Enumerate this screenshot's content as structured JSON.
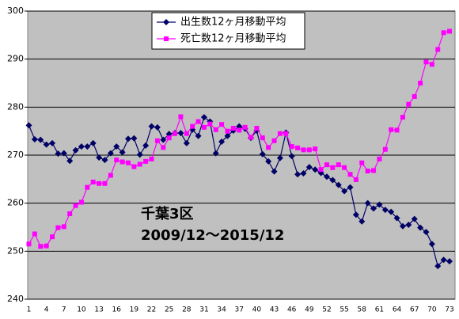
{
  "chart_data": {
    "type": "line",
    "annotations": [
      "千葉3区",
      "2009/12～2015/12"
    ],
    "categories": [
      1,
      null,
      null,
      4,
      null,
      null,
      7,
      null,
      null,
      10,
      null,
      null,
      13,
      null,
      null,
      16,
      null,
      null,
      19,
      null,
      null,
      22,
      null,
      null,
      25,
      null,
      null,
      28,
      null,
      null,
      31,
      null,
      null,
      34,
      null,
      null,
      37,
      null,
      null,
      40,
      null,
      null,
      43,
      null,
      null,
      46,
      null,
      null,
      49,
      null,
      null,
      52,
      null,
      null,
      55,
      null,
      null,
      58,
      null,
      null,
      61,
      null,
      null,
      64,
      null,
      null,
      67,
      null,
      null,
      70,
      null,
      null,
      73
    ],
    "series": [
      {
        "name": "出生数12ヶ月移動平均",
        "color": "#000066",
        "marker": "diamond",
        "values": [
          276.2,
          273.3,
          273.2,
          272.2,
          272.5,
          270.3,
          270.4,
          268.8,
          271.0,
          271.8,
          271.8,
          272.5,
          269.5,
          269.0,
          270.4,
          271.8,
          270.6,
          273.4,
          273.5,
          270.1,
          272.0,
          276.0,
          275.8,
          273.2,
          274.4,
          274.6,
          274.6,
          272.5,
          275.3,
          274.0,
          277.9,
          277.0,
          270.4,
          272.8,
          274.0,
          275.1,
          276.0,
          275.5,
          273.6,
          275.1,
          270.2,
          268.7,
          266.6,
          269.4,
          274.7,
          269.8,
          266.0,
          266.2,
          267.5,
          267.0,
          266.3,
          265.5,
          264.8,
          263.8,
          262.5,
          263.3,
          257.6,
          256.2,
          260.0,
          258.9,
          259.7,
          258.6,
          258.2,
          256.9,
          255.2,
          255.5,
          256.7,
          254.9,
          254.0,
          251.5,
          246.9,
          248.2,
          247.9
        ]
      },
      {
        "name": "死亡数12ヶ月移動平均",
        "color": "#ff00ff",
        "marker": "square",
        "values": [
          251.5,
          253.6,
          251.0,
          251.1,
          253.0,
          254.9,
          255.1,
          257.8,
          259.5,
          260.2,
          263.3,
          264.4,
          264.1,
          264.1,
          265.8,
          269.0,
          268.6,
          268.4,
          267.6,
          268.1,
          268.7,
          269.2,
          273.0,
          271.6,
          273.6,
          274.5,
          278.0,
          274.5,
          276.0,
          277.0,
          275.8,
          276.5,
          275.3,
          276.4,
          275.0,
          275.6,
          275.2,
          275.8,
          273.7,
          275.6,
          273.6,
          271.6,
          273.0,
          274.5,
          274.5,
          271.8,
          271.5,
          271.1,
          271.1,
          271.3,
          267.0,
          268.0,
          267.4,
          268.0,
          267.4,
          266.0,
          264.9,
          268.4,
          266.7,
          266.8,
          269.2,
          271.2,
          275.3,
          275.2,
          277.9,
          280.6,
          282.2,
          285.0,
          289.4,
          288.9,
          292.0,
          295.5,
          295.8
        ]
      }
    ],
    "ylim": [
      240,
      300
    ],
    "yticks": [
      240,
      250,
      260,
      270,
      280,
      290,
      300
    ],
    "grid": true,
    "plot_background": "#c0c0c0"
  }
}
